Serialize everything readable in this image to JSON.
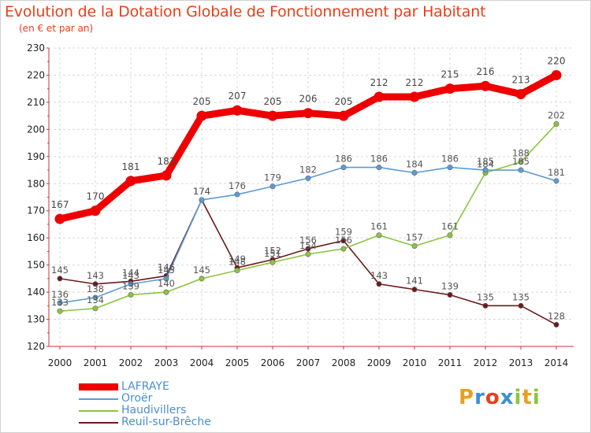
{
  "title": "Evolution de la Dotation Globale de Fonctionnement par Habitant",
  "subtitle": "(en € et par an)",
  "logo": {
    "letters": [
      "P",
      "r",
      "o",
      "x",
      "i",
      "t",
      "i"
    ],
    "colors": [
      "#e8a020",
      "#3a8fd6",
      "#e8401a",
      "#3a8fd6",
      "#8bc53f",
      "#e8a020",
      "#8bc53f"
    ]
  },
  "chart_data": {
    "type": "line",
    "x": [
      "2000",
      "2001",
      "2002",
      "2003",
      "2004",
      "2005",
      "2006",
      "2007",
      "2008",
      "2009",
      "2010",
      "2011",
      "2012",
      "2013",
      "2014"
    ],
    "ylim": [
      120,
      230
    ],
    "yticks": [
      "120",
      "130",
      "140",
      "150",
      "160",
      "170",
      "180",
      "190",
      "200",
      "210",
      "220",
      "230"
    ],
    "grid": true,
    "legend_position": "bottom-left",
    "series": [
      {
        "name": "LAFRAYE",
        "color": "#ee0000",
        "values": [
          167,
          170,
          181,
          183,
          205,
          207,
          205,
          206,
          205,
          212,
          212,
          215,
          216,
          213,
          220
        ]
      },
      {
        "name": "Oroër",
        "color": "#5b9bd5",
        "values": [
          136,
          138,
          143,
          145,
          174,
          176,
          179,
          182,
          186,
          186,
          184,
          186,
          185,
          185,
          181
        ]
      },
      {
        "name": "Haudivillers",
        "color": "#8bc53f",
        "values": [
          133,
          134,
          139,
          140,
          145,
          148,
          151,
          154,
          156,
          161,
          157,
          161,
          184,
          188,
          202
        ]
      },
      {
        "name": "Reuil-sur-Brêche",
        "color": "#6b1a1a",
        "values": [
          145,
          143,
          144,
          146,
          174,
          149,
          152,
          156,
          159,
          143,
          141,
          139,
          135,
          135,
          128
        ]
      }
    ],
    "data_labels": [
      [
        "167",
        "170",
        "181",
        "183",
        "205",
        "207",
        "205",
        "206",
        "205",
        "212",
        "212",
        "215",
        "216",
        "213",
        "220"
      ],
      [
        "136",
        "138",
        "143",
        "145",
        "174",
        "176",
        "179",
        "182",
        "186",
        "186",
        "184",
        "186",
        "185",
        "185",
        "181"
      ],
      [
        "133",
        "134",
        "139",
        "140",
        "145",
        "148",
        "151",
        "154",
        "156",
        "161",
        "157",
        "161",
        "184",
        "188",
        "202"
      ],
      [
        "145",
        "143",
        "144",
        "146",
        "174",
        "149",
        "152",
        "156",
        "159",
        "143",
        "141",
        "139",
        "135",
        "135",
        "128"
      ]
    ]
  }
}
